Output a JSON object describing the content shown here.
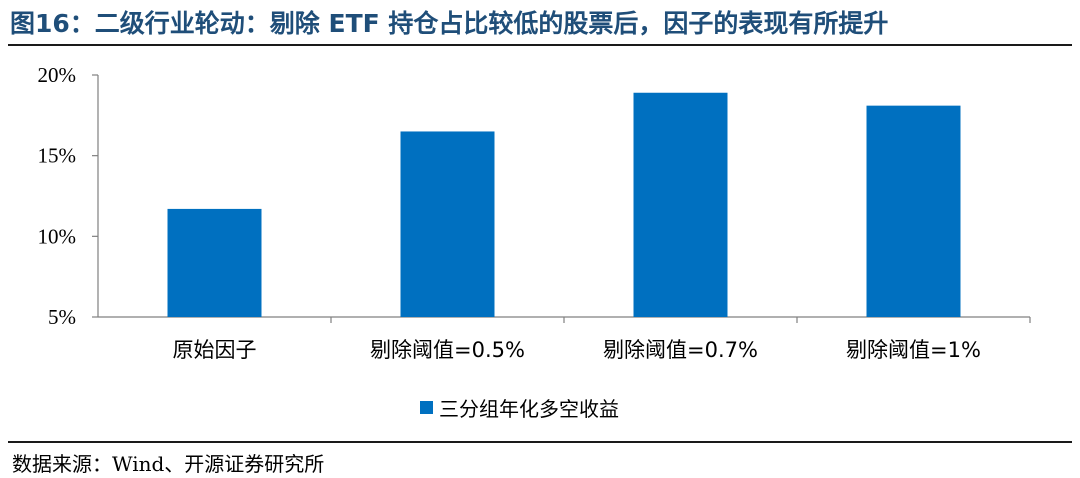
{
  "header": {
    "title": "图16：二级行业轮动：剔除 ETF 持仓占比较低的股票后，因子的表现有所提升"
  },
  "footer": {
    "source": "数据来源：Wind、开源证券研究所"
  },
  "chart_data": {
    "type": "bar",
    "categories": [
      "原始因子",
      "剔除阈值=0.5%",
      "剔除阈值=0.7%",
      "剔除阈值=1%"
    ],
    "series": [
      {
        "name": "三分组年化多空收益",
        "values": [
          11.7,
          16.5,
          18.9,
          18.1
        ],
        "color": "#0070c0"
      }
    ],
    "ylim": [
      5,
      20
    ],
    "yticks": [
      5,
      10,
      15,
      20
    ],
    "ytick_labels": [
      "5%",
      "10%",
      "15%",
      "20%"
    ],
    "grid": false,
    "legend": "bottom-center"
  }
}
